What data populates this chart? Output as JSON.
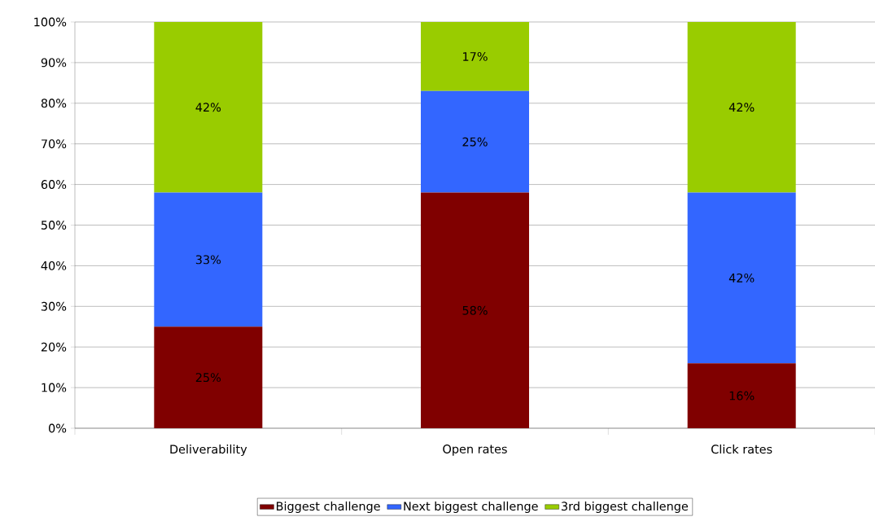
{
  "chart_data": {
    "type": "bar",
    "stacked": true,
    "categories": [
      "Deliverability",
      "Open rates",
      "Click rates"
    ],
    "series": [
      {
        "name": "Biggest challenge",
        "color": "#800000",
        "values": [
          25,
          58,
          16
        ],
        "value_labels": [
          "25%",
          "58%",
          "16%"
        ]
      },
      {
        "name": "Next biggest challenge",
        "color": "#3366ff",
        "values": [
          33,
          25,
          42
        ],
        "value_labels": [
          "33%",
          "25%",
          "42%"
        ]
      },
      {
        "name": "3rd biggest challenge",
        "color": "#99cc00",
        "values": [
          42,
          17,
          42
        ],
        "value_labels": [
          "42%",
          "17%",
          "42%"
        ]
      }
    ],
    "ylim": [
      0,
      100
    ],
    "yticks": [
      {
        "value": 0,
        "label": "0%"
      },
      {
        "value": 10,
        "label": "10%"
      },
      {
        "value": 20,
        "label": "20%"
      },
      {
        "value": 30,
        "label": "30%"
      },
      {
        "value": 40,
        "label": "40%"
      },
      {
        "value": 50,
        "label": "50%"
      },
      {
        "value": 60,
        "label": "60%"
      },
      {
        "value": 70,
        "label": "70%"
      },
      {
        "value": 80,
        "label": "80%"
      },
      {
        "value": 90,
        "label": "90%"
      },
      {
        "value": 100,
        "label": "100%"
      }
    ],
    "grid": "y",
    "legend": "bottom"
  }
}
